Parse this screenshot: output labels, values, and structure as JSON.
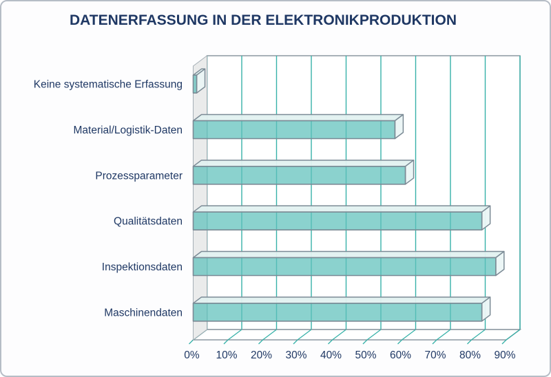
{
  "page": {
    "title": "DATENERFASSUNG IN DER ELEKTRONIKPRODUKTION"
  },
  "chart_data": {
    "type": "bar",
    "orientation": "horizontal",
    "style": "3d",
    "title": "DATENERFASSUNG IN DER ELEKTRONIKPRODUKTION",
    "categories": [
      "Keine systematische Erfassung",
      "Material/Logistik-Daten",
      "Prozessparameter",
      "Qualitätsdaten",
      "Inspektionsdaten",
      "Maschinendaten"
    ],
    "values": [
      1,
      58,
      61,
      83,
      87,
      83
    ],
    "value_unit": "%",
    "x_ticks": [
      "0%",
      "10%",
      "20%",
      "30%",
      "40%",
      "50%",
      "60%",
      "70%",
      "80%",
      "90%"
    ],
    "xlim": [
      0,
      90
    ],
    "grid": true,
    "legend": false,
    "colors": {
      "bar_fill": "#5ec1bb",
      "bar_top_face": "#e2f1f0",
      "bar_end_face": "#ebf6f5",
      "bar_outline": "#7b8a95",
      "gridline": "#36b1a8",
      "wall_fill": "#eaebeb",
      "wall_border": "#8b97a0",
      "left_wall_border": "#a6afb6",
      "text": "#1f3864",
      "plot_background": "#ffffff"
    }
  }
}
